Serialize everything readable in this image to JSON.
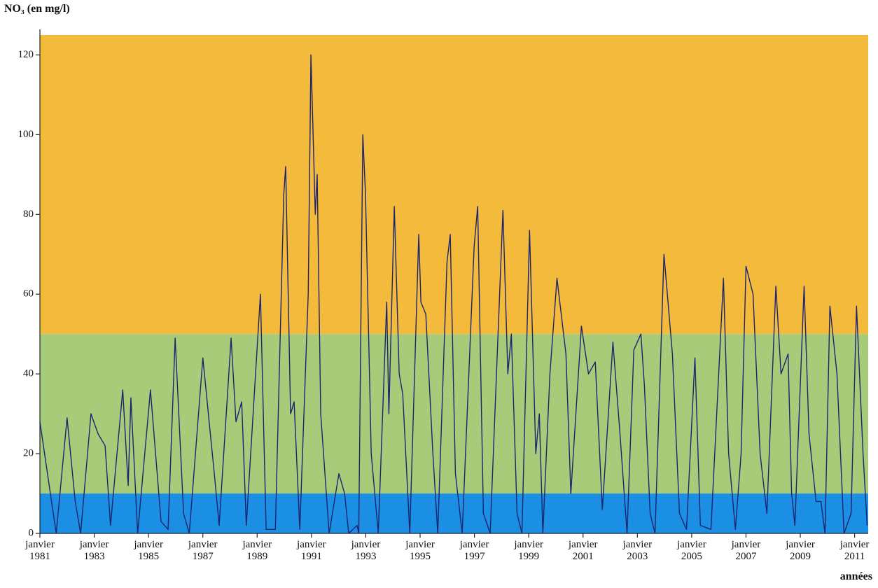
{
  "chart_data": {
    "type": "line",
    "title": "NO₃ (en mg/l)",
    "x_label": "années",
    "color": "#1c2470",
    "bands": [
      {
        "from": 0,
        "to": 10,
        "color": "#1a8fe3"
      },
      {
        "from": 10,
        "to": 50,
        "color": "#a6cc7a"
      },
      {
        "from": 50,
        "to": 125,
        "color": "#f4ba3b"
      }
    ],
    "xlim": [
      1981,
      2011.5
    ],
    "ylim": [
      0,
      125
    ],
    "yticks": [
      0,
      20,
      40,
      60,
      80,
      100,
      120
    ],
    "xticks": [
      {
        "value": 1981,
        "label": "janvier 1981"
      },
      {
        "value": 1983,
        "label": "janvier 1983"
      },
      {
        "value": 1985,
        "label": "janvier 1985"
      },
      {
        "value": 1987,
        "label": "janvier 1987"
      },
      {
        "value": 1989,
        "label": "janvier 1989"
      },
      {
        "value": 1991,
        "label": "janvier 1991"
      },
      {
        "value": 1993,
        "label": "janvier 1993"
      },
      {
        "value": 1995,
        "label": "janvier 1995"
      },
      {
        "value": 1997,
        "label": "janvier 1997"
      },
      {
        "value": 1999,
        "label": "janvier 1999"
      },
      {
        "value": 2001,
        "label": "janvier 2001"
      },
      {
        "value": 2003,
        "label": "janvier 2003"
      },
      {
        "value": 2005,
        "label": "janvier 2005"
      },
      {
        "value": 2007,
        "label": "janvier 2007"
      },
      {
        "value": 2009,
        "label": "janvier 2009"
      },
      {
        "value": 2011,
        "label": "janvier 2011"
      }
    ],
    "x": [
      1981.0,
      1981.6,
      1982.0,
      1982.3,
      1982.5,
      1982.88,
      1983.14,
      1983.4,
      1983.6,
      1984.05,
      1984.25,
      1984.35,
      1984.6,
      1985.07,
      1985.46,
      1985.72,
      1985.98,
      1986.29,
      1986.5,
      1987.0,
      1987.45,
      1987.6,
      1988.04,
      1988.22,
      1988.43,
      1988.6,
      1989.12,
      1989.33,
      1989.67,
      1989.98,
      1990.05,
      1990.23,
      1990.36,
      1990.57,
      1990.88,
      1990.98,
      1991.14,
      1991.21,
      1991.34,
      1991.65,
      1992.01,
      1992.22,
      1992.37,
      1992.68,
      1992.74,
      1992.89,
      1992.99,
      1993.2,
      1993.46,
      1993.77,
      1993.85,
      1994.05,
      1994.23,
      1994.36,
      1994.62,
      1994.95,
      1995.03,
      1995.21,
      1995.47,
      1995.65,
      1995.99,
      1996.11,
      1996.3,
      1996.55,
      1996.99,
      1997.12,
      1997.33,
      1997.58,
      1998.05,
      1998.23,
      1998.36,
      1998.57,
      1998.75,
      1999.03,
      1999.26,
      1999.39,
      1999.52,
      1999.78,
      2000.04,
      2000.37,
      2000.55,
      2000.94,
      2001.2,
      2001.45,
      2001.71,
      2002.1,
      2002.36,
      2002.62,
      2002.87,
      2003.13,
      2003.26,
      2003.47,
      2003.65,
      2003.98,
      2004.29,
      2004.55,
      2004.81,
      2005.12,
      2005.32,
      2005.71,
      2006.17,
      2006.36,
      2006.61,
      2006.82,
      2007.0,
      2007.26,
      2007.52,
      2007.77,
      2008.1,
      2008.29,
      2008.55,
      2008.68,
      2008.8,
      2009.14,
      2009.32,
      2009.58,
      2009.76,
      2009.91,
      2010.09,
      2010.35,
      2010.61,
      2010.87,
      2011.07,
      2011.31,
      2011.46
    ],
    "values": [
      28,
      0,
      29,
      8,
      0,
      30,
      25,
      22,
      2,
      36,
      12,
      34,
      0,
      36,
      3,
      1,
      49,
      5,
      0,
      44,
      13,
      2,
      49,
      28,
      33,
      2,
      60,
      1,
      1,
      85,
      92,
      30,
      33,
      1,
      60,
      120,
      80,
      90,
      30,
      0,
      15,
      10,
      0,
      2,
      0,
      100,
      85,
      20,
      0,
      58,
      30,
      82,
      40,
      35,
      0,
      75,
      58,
      55,
      20,
      0,
      68,
      75,
      15,
      0,
      72,
      82,
      5,
      0,
      81,
      40,
      50,
      5,
      0,
      76,
      20,
      30,
      0,
      40,
      64,
      45,
      10,
      52,
      40,
      43,
      6,
      48,
      25,
      0,
      46,
      50,
      37,
      5,
      0,
      70,
      45,
      5,
      1,
      44,
      2,
      1,
      64,
      20,
      1,
      20,
      67,
      60,
      20,
      5,
      62,
      40,
      45,
      10,
      2,
      62,
      25,
      8,
      8,
      0,
      57,
      40,
      0,
      5,
      57,
      20,
      2
    ]
  }
}
